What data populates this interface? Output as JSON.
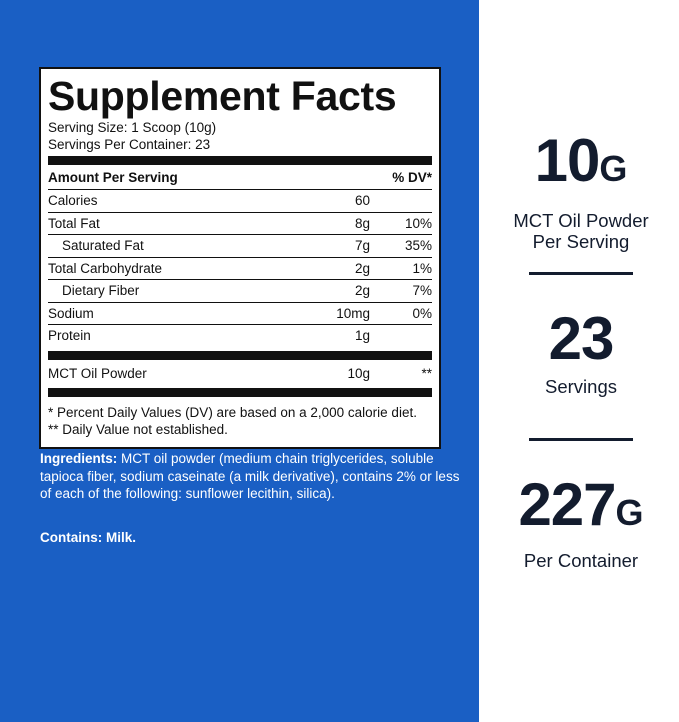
{
  "facts": {
    "title": "Supplement Facts",
    "serving_size": "Serving Size: 1 Scoop (10g)",
    "servings_per_container": "Servings Per Container: 23",
    "header_amount": "Amount Per Serving",
    "header_dv": "% DV*",
    "rows": [
      {
        "name": "Calories",
        "amount": "60",
        "dv": ""
      },
      {
        "name": "Total Fat",
        "amount": "8g",
        "dv": "10%"
      },
      {
        "name": "Saturated Fat",
        "amount": "7g",
        "dv": "35%"
      },
      {
        "name": "Total Carbohydrate",
        "amount": "2g",
        "dv": "1%"
      },
      {
        "name": "Dietary Fiber",
        "amount": "2g",
        "dv": "7%"
      },
      {
        "name": "Sodium",
        "amount": "10mg",
        "dv": "0%"
      },
      {
        "name": "Protein",
        "amount": "1g",
        "dv": ""
      }
    ],
    "mct_row": {
      "name": "MCT Oil Powder",
      "amount": "10g",
      "dv": "**"
    },
    "footnote_1": "* Percent Daily Values (DV) are based on a 2,000 calorie diet.",
    "footnote_2": "** Daily Value not established."
  },
  "ingredients": {
    "label": "Ingredients:",
    "text": " MCT oil powder (medium chain triglycerides, soluble tapioca fiber, sodium caseinate (a milk derivative), contains 2% or less of each of the following: sunflower lecithin, silica).",
    "contains": "Contains: Milk."
  },
  "stats": [
    {
      "number": "10",
      "unit": "G",
      "desc_1": "MCT Oil Powder",
      "desc_2": "Per Serving"
    },
    {
      "number": "23",
      "unit": "",
      "desc_1": "Servings",
      "desc_2": ""
    },
    {
      "number": "227",
      "unit": "G",
      "desc_1": "Per Container",
      "desc_2": ""
    }
  ],
  "colors": {
    "panel_blue": "#1a5fc4",
    "stat_navy": "#131c2e"
  }
}
